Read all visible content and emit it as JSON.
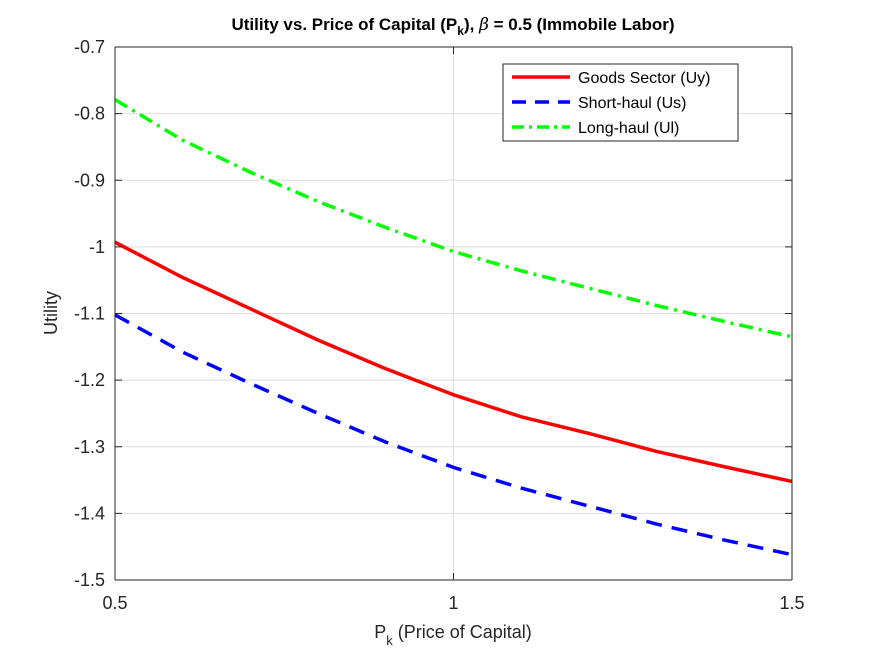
{
  "chart_data": {
    "type": "line",
    "title": {
      "prefix": "Utility vs. Price of Capital (P",
      "subscript": "k",
      "middle": "), ",
      "symbol": "β",
      "suffix": " = 0.5 (Immobile Labor)"
    },
    "xlabel": {
      "main": "P",
      "subscript": "k",
      "suffix": " (Price of Capital)"
    },
    "ylabel": "Utility",
    "xlim": [
      0.5,
      1.5
    ],
    "ylim": [
      -1.5,
      -0.7
    ],
    "xticks": [
      0.5,
      1,
      1.5
    ],
    "xtick_labels": [
      "0.5",
      "1",
      "1.5"
    ],
    "yticks": [
      -1.5,
      -1.4,
      -1.3,
      -1.2,
      -1.1,
      -1,
      -0.9,
      -0.8,
      -0.7
    ],
    "ytick_labels": [
      "-1.5",
      "-1.4",
      "-1.3",
      "-1.2",
      "-1.1",
      "-1",
      "-0.9",
      "-0.8",
      "-0.7"
    ],
    "grid": true,
    "legend_position": "top-right",
    "x": [
      0.5,
      0.6,
      0.7,
      0.8,
      0.9,
      1.0,
      1.1,
      1.2,
      1.3,
      1.4,
      1.5
    ],
    "series": [
      {
        "name": "Goods Sector (Uy)",
        "color": "#ff0000",
        "style": "solid",
        "values": [
          -0.993,
          -1.046,
          -1.093,
          -1.14,
          -1.183,
          -1.222,
          -1.255,
          -1.28,
          -1.307,
          -1.33,
          -1.352
        ]
      },
      {
        "name": "Short-haul (Us)",
        "color": "#0000ff",
        "style": "dashed",
        "values": [
          -1.102,
          -1.158,
          -1.205,
          -1.25,
          -1.293,
          -1.331,
          -1.362,
          -1.389,
          -1.416,
          -1.44,
          -1.462
        ]
      },
      {
        "name": "Long-haul (Ul)",
        "color": "#00ff00",
        "style": "dashdot",
        "values": [
          -0.779,
          -0.84,
          -0.888,
          -0.932,
          -0.971,
          -1.007,
          -1.036,
          -1.062,
          -1.088,
          -1.112,
          -1.135
        ]
      }
    ]
  }
}
